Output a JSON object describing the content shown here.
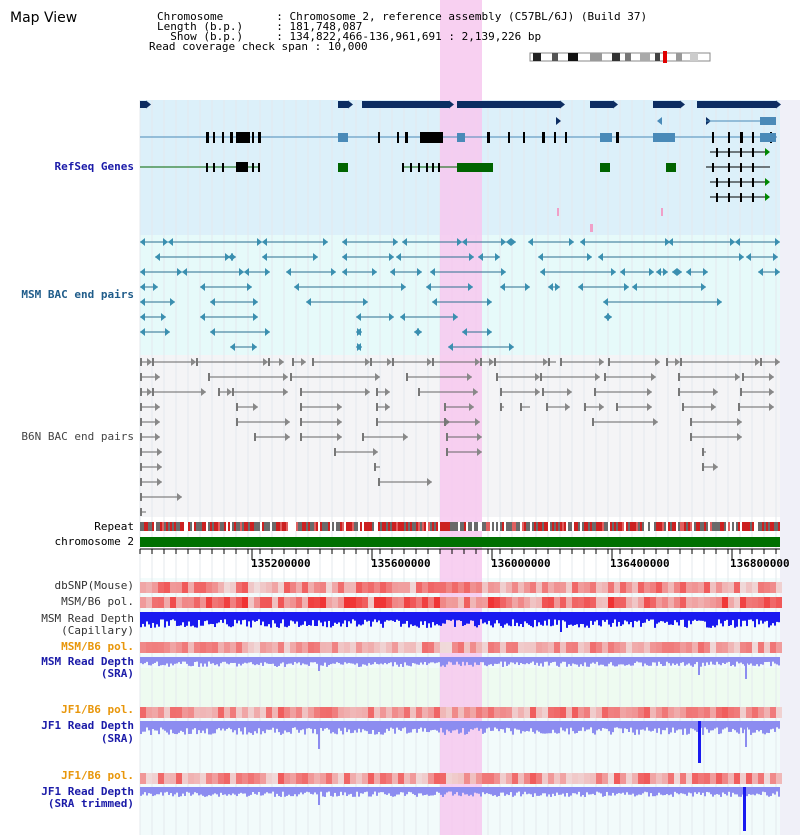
{
  "header": {
    "title": "Map View",
    "chromosome_label": "Chromosome",
    "chromosome_value": "Chromosome 2, reference assembly (C57BL/6J) (Build 37)",
    "length_label": "Length (b.p.)",
    "length_value": "181,748,087",
    "show_label": "Show (b.p.)",
    "show_value": "134,822,466-136,961,691 : 2,139,226 bp",
    "coverage_label": "Read coverage check span",
    "coverage_value": "10,000",
    "separator": ":"
  },
  "tracks": {
    "refseq": "RefSeq Genes",
    "msm_bac": "MSM BAC end pairs",
    "b6n_bac": "B6N BAC end pairs",
    "repeat": "Repeat",
    "chromosome": "chromosome 2",
    "dbsnp": "dbSNP(Mouse)",
    "msm_b6_pol_1": "MSM/B6 pol.",
    "msm_depth_cap_1": "MSM Read Depth",
    "msm_depth_cap_2": "(Capillary)",
    "msm_b6_pol_2": "MSM/B6 pol.",
    "msm_depth_sra_1": "MSM Read Depth",
    "msm_depth_sra_2": "(SRA)",
    "jf1_b6_pol_1": "JF1/B6 pol.",
    "jf1_depth_sra_1": "JF1 Read Depth",
    "jf1_depth_sra_2": "(SRA)",
    "jf1_b6_pol_2": "JF1/B6 pol.",
    "jf1_depth_trim_1": "JF1 Read Depth",
    "jf1_depth_trim_2": "(SRA trimmed)"
  },
  "axis": {
    "ticks": [
      "135200000",
      "135600000",
      "136000000",
      "136400000",
      "136800000"
    ]
  },
  "colors": {
    "highlight": "#f7c8ef",
    "refseq_bg": "#dcf0fa",
    "msm_bg": "#e6fafa",
    "b6n_bg": "#f4f4f6",
    "gene_navy": "#0c2d62",
    "gene_steel": "#4a8ab8",
    "gene_green": "#006400",
    "chromosome_green": "#007000",
    "depth_blue": "#1a1af0",
    "depth_light": "#8c8cf0"
  }
}
